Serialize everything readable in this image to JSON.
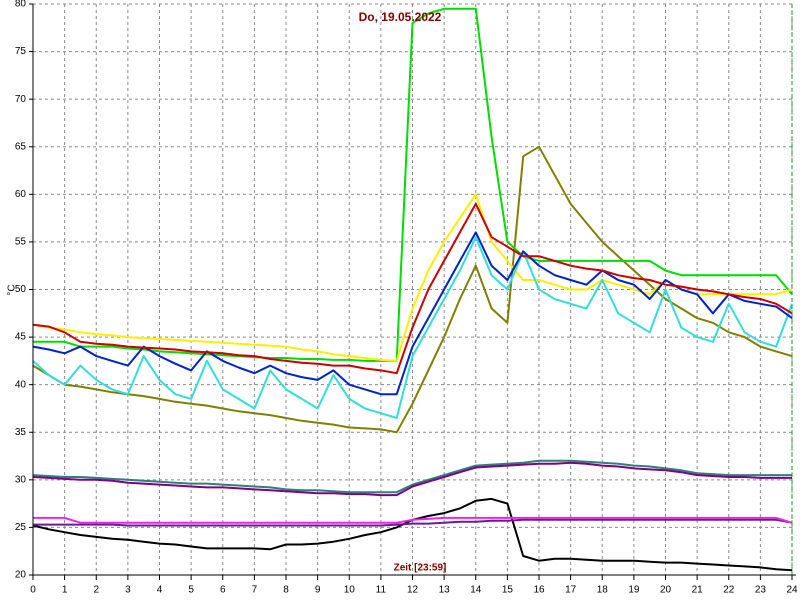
{
  "chart_data": {
    "type": "line",
    "title": "Do, 19.05.2022",
    "y_label": "°C",
    "x_label": "Zeit [23:59]",
    "xlim": [
      0,
      24
    ],
    "ylim": [
      20,
      80
    ],
    "xticks": [
      0,
      1,
      2,
      3,
      4,
      5,
      6,
      7,
      8,
      9,
      10,
      11,
      12,
      13,
      14,
      15,
      16,
      17,
      18,
      19,
      20,
      21,
      22,
      23,
      24
    ],
    "yticks": [
      20,
      25,
      30,
      35,
      40,
      45,
      50,
      55,
      60,
      65,
      70,
      75,
      80
    ],
    "grid": true,
    "x": [
      0,
      0.5,
      1,
      1.5,
      2,
      2.5,
      3,
      3.5,
      4,
      4.5,
      5,
      5.5,
      6,
      6.5,
      7,
      7.5,
      8,
      8.5,
      9,
      9.5,
      10,
      10.5,
      11,
      11.5,
      12,
      12.5,
      13,
      13.5,
      14,
      14.5,
      15,
      15.5,
      16,
      16.5,
      17,
      17.5,
      18,
      18.5,
      19,
      19.5,
      20,
      20.5,
      21,
      21.5,
      22,
      22.5,
      23,
      23.5,
      24
    ],
    "series": [
      {
        "color": "#000000",
        "values": [
          25.2,
          24.8,
          24.5,
          24.2,
          24,
          23.8,
          23.7,
          23.5,
          23.3,
          23.2,
          23,
          22.8,
          22.8,
          22.8,
          22.8,
          22.7,
          23.2,
          23.2,
          23.3,
          23.5,
          23.8,
          24.2,
          24.5,
          25,
          25.8,
          26.2,
          26.5,
          27,
          27.8,
          28,
          27.5,
          22,
          21.5,
          21.7,
          21.7,
          21.6,
          21.5,
          21.5,
          21.5,
          21.4,
          21.3,
          21.3,
          21.2,
          21.1,
          21,
          20.9,
          20.8,
          20.6,
          20.5
        ]
      },
      {
        "color": "#6a1b9a",
        "values": [
          25.3,
          25.3,
          25.3,
          25.3,
          25.3,
          25.3,
          25.2,
          25.2,
          25.2,
          25.2,
          25.2,
          25.2,
          25.2,
          25.2,
          25.2,
          25.2,
          25.2,
          25.2,
          25.2,
          25.2,
          25.2,
          25.2,
          25.2,
          25.3,
          25.4,
          25.4,
          25.5,
          25.6,
          25.6,
          25.7,
          25.7,
          25.8,
          25.8,
          25.8,
          25.8,
          25.8,
          25.8,
          25.8,
          25.8,
          25.8,
          25.8,
          25.8,
          25.8,
          25.8,
          25.8,
          25.8,
          25.8,
          25.8,
          25.5
        ]
      },
      {
        "color": "#ee22ee",
        "values": [
          26,
          26,
          26,
          25.5,
          25.5,
          25.5,
          25.5,
          25.5,
          25.5,
          25.5,
          25.5,
          25.5,
          25.5,
          25.5,
          25.5,
          25.5,
          25.5,
          25.5,
          25.5,
          25.5,
          25.5,
          25.5,
          25.5,
          25.5,
          25.8,
          25.9,
          26,
          26,
          26,
          26,
          26,
          26,
          26,
          26,
          26,
          26,
          26,
          26,
          26,
          26,
          26,
          26,
          26,
          26,
          26,
          26,
          26,
          26,
          25.5
        ]
      },
      {
        "color": "#2f7f7f",
        "values": [
          30.5,
          30.4,
          30.3,
          30.3,
          30.2,
          30.1,
          30,
          29.9,
          29.8,
          29.7,
          29.6,
          29.6,
          29.5,
          29.4,
          29.3,
          29.2,
          29,
          28.9,
          28.9,
          28.8,
          28.7,
          28.7,
          28.7,
          28.7,
          29.5,
          30,
          30.5,
          31,
          31.5,
          31.6,
          31.7,
          31.8,
          32,
          32,
          32,
          31.9,
          31.8,
          31.7,
          31.5,
          31.4,
          31.2,
          31,
          30.7,
          30.6,
          30.5,
          30.5,
          30.5,
          30.5,
          30.5
        ]
      },
      {
        "color": "#800080",
        "values": [
          30.3,
          30.2,
          30.1,
          30,
          30,
          29.9,
          29.7,
          29.6,
          29.5,
          29.4,
          29.3,
          29.2,
          29.2,
          29.1,
          29,
          28.9,
          28.8,
          28.7,
          28.6,
          28.6,
          28.5,
          28.5,
          28.4,
          28.4,
          29.3,
          29.8,
          30.3,
          30.8,
          31.3,
          31.4,
          31.5,
          31.6,
          31.7,
          31.7,
          31.8,
          31.7,
          31.5,
          31.4,
          31.2,
          31.1,
          31,
          30.8,
          30.5,
          30.4,
          30.3,
          30.3,
          30.2,
          30.2,
          30.2
        ]
      },
      {
        "color": "#808000",
        "values": [
          42,
          41,
          40,
          39.8,
          39.5,
          39.2,
          39,
          38.8,
          38.5,
          38.2,
          38,
          37.8,
          37.5,
          37.2,
          37,
          36.8,
          36.5,
          36.2,
          36,
          35.8,
          35.5,
          35.4,
          35.3,
          35,
          38,
          41.5,
          45,
          49,
          52.5,
          48,
          46.5,
          64,
          65,
          62,
          59,
          57,
          55,
          53.5,
          52,
          50.5,
          49,
          48,
          47,
          46.5,
          45.5,
          45,
          44,
          43.5,
          43
        ]
      },
      {
        "color": "#00dd00",
        "values": [
          44.5,
          44.5,
          44.5,
          44,
          44,
          44,
          43.8,
          43.7,
          43.5,
          43.4,
          43.3,
          43.2,
          43.1,
          43,
          42.9,
          42.8,
          42.8,
          42.7,
          42.7,
          42.6,
          42.6,
          42.5,
          42.5,
          42.5,
          78,
          79,
          79.5,
          79.5,
          79.5,
          66,
          55,
          53.5,
          53,
          53,
          53,
          53,
          53,
          53,
          53,
          53,
          52,
          51.5,
          51.5,
          51.5,
          51.5,
          51.5,
          51.5,
          51.5,
          49.5
        ]
      },
      {
        "color": "#ffee00",
        "values": [
          46.3,
          46,
          45.8,
          45.5,
          45.3,
          45.2,
          45,
          44.9,
          44.8,
          44.7,
          44.6,
          44.5,
          44.4,
          44.3,
          44.2,
          44.1,
          44,
          43.7,
          43.5,
          43.2,
          43,
          42.8,
          42.6,
          42.5,
          48,
          52,
          55,
          57.5,
          60,
          55,
          53,
          51,
          51,
          50.5,
          50,
          50,
          51,
          50.5,
          50,
          49.5,
          51,
          50,
          49.5,
          49.5,
          49.5,
          49.5,
          49.5,
          49.5,
          50
        ]
      },
      {
        "color": "#33dddd",
        "values": [
          42.5,
          41,
          40,
          42,
          40.5,
          39.5,
          39,
          43,
          40.5,
          39,
          38.5,
          42.5,
          39.5,
          38.5,
          37.5,
          41.5,
          39.5,
          38.5,
          37.5,
          41,
          38.5,
          37.5,
          37,
          36.5,
          43,
          46,
          49,
          52,
          55.5,
          51.5,
          50,
          54,
          50,
          49,
          48.5,
          48,
          51,
          47.5,
          46.5,
          45.5,
          50,
          46,
          45,
          44.5,
          48.5,
          45.5,
          44.5,
          44,
          48.5
        ]
      },
      {
        "color": "#0022cc",
        "values": [
          44,
          43.7,
          43.3,
          44,
          43,
          42.5,
          42,
          44,
          43,
          42.2,
          41.5,
          43.5,
          42.5,
          41.8,
          41.2,
          42,
          41.2,
          40.8,
          40.5,
          41.5,
          40,
          39.5,
          39,
          39,
          44,
          47,
          50,
          53,
          56,
          52.5,
          51,
          54,
          52.5,
          51.5,
          51,
          50.5,
          52,
          51,
          50.5,
          49,
          51,
          50,
          49.5,
          47.5,
          49.5,
          48.8,
          48.5,
          48.2,
          47
        ]
      },
      {
        "color": "#cc0000",
        "values": [
          46.3,
          46.1,
          45.5,
          44.5,
          44.3,
          44.2,
          44,
          43.9,
          43.8,
          43.7,
          43.5,
          43.4,
          43.3,
          43.1,
          43,
          42.7,
          42.5,
          42.3,
          42.2,
          42,
          42,
          41.7,
          41.5,
          41.2,
          46,
          50,
          53,
          56,
          59,
          55.5,
          54.5,
          53.5,
          53.5,
          53,
          52.5,
          52.2,
          52,
          51.5,
          51.2,
          51,
          50.5,
          50.3,
          50,
          49.8,
          49.5,
          49.2,
          49,
          48.5,
          47.5
        ]
      }
    ]
  }
}
